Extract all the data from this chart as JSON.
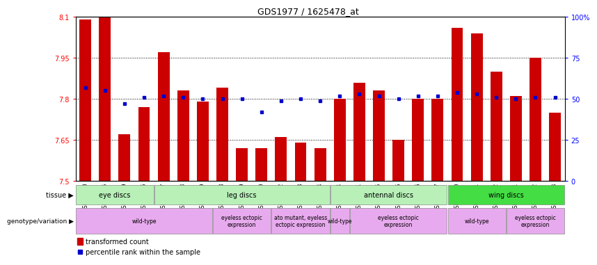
{
  "title": "GDS1977 / 1625478_at",
  "samples": [
    "GSM91570",
    "GSM91585",
    "GSM91609",
    "GSM91616",
    "GSM91617",
    "GSM91618",
    "GSM91619",
    "GSM91478",
    "GSM91479",
    "GSM91480",
    "GSM91472",
    "GSM91473",
    "GSM91474",
    "GSM91484",
    "GSM91491",
    "GSM91515",
    "GSM91475",
    "GSM91476",
    "GSM91477",
    "GSM91620",
    "GSM91621",
    "GSM91622",
    "GSM91481",
    "GSM91482",
    "GSM91483"
  ],
  "red_values": [
    8.09,
    8.1,
    7.67,
    7.77,
    7.97,
    7.83,
    7.79,
    7.84,
    7.62,
    7.62,
    7.66,
    7.64,
    7.62,
    7.8,
    7.86,
    7.83,
    7.65,
    7.8,
    7.8,
    8.06,
    8.04,
    7.9,
    7.81,
    7.95,
    7.75
  ],
  "blue_values": [
    57,
    55,
    47,
    51,
    52,
    51,
    50,
    50,
    50,
    42,
    49,
    50,
    49,
    52,
    53,
    52,
    50,
    52,
    52,
    54,
    53,
    51,
    50,
    51,
    51
  ],
  "ymin": 7.5,
  "ymax": 8.1,
  "y_ticks": [
    7.5,
    7.65,
    7.8,
    7.95,
    8.1
  ],
  "y2_ticks": [
    0,
    25,
    50,
    75,
    100
  ],
  "bar_color": "#cc0000",
  "blue_color": "#0000cc",
  "tissue_groups": [
    {
      "label": "eye discs",
      "start": 0,
      "end": 3,
      "color": "#b8f0b8"
    },
    {
      "label": "leg discs",
      "start": 4,
      "end": 12,
      "color": "#b8f0b8"
    },
    {
      "label": "antennal discs",
      "start": 13,
      "end": 18,
      "color": "#b8f0b8"
    },
    {
      "label": "wing discs",
      "start": 19,
      "end": 24,
      "color": "#44dd44"
    }
  ],
  "genotype_groups": [
    {
      "label": "wild-type",
      "start": 0,
      "end": 6
    },
    {
      "label": "eyeless ectopic\nexpression",
      "start": 7,
      "end": 9
    },
    {
      "label": "ato mutant, eyeless\nectopic expression",
      "start": 10,
      "end": 12
    },
    {
      "label": "wild-type",
      "start": 13,
      "end": 13
    },
    {
      "label": "eyeless ectopic\nexpression",
      "start": 14,
      "end": 18
    },
    {
      "label": "wild-type",
      "start": 19,
      "end": 21
    },
    {
      "label": "eyeless ectopic\nexpression",
      "start": 22,
      "end": 24
    }
  ],
  "geno_color": "#e8aaee",
  "plot_bg_color": "#ffffff"
}
